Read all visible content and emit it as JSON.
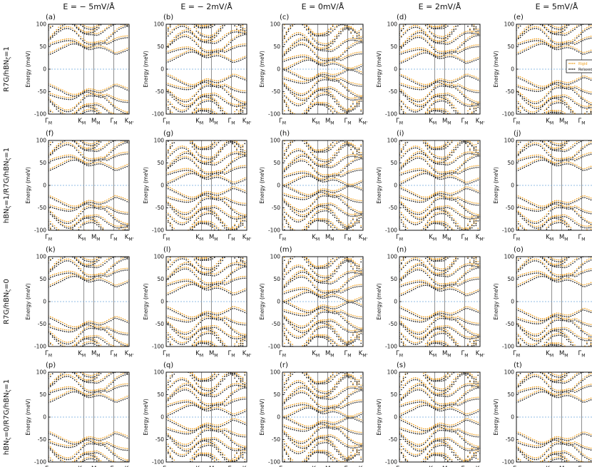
{
  "figure": {
    "column_headers": [
      "E = − 5mV/Å",
      "E = − 2mV/Å",
      "E = 0mV/Å",
      "E = 2mV/Å",
      "E = 5mV/Å"
    ],
    "row_headers": [
      {
        "base": "R7G/hBN",
        "sub": "ζ",
        "tail": "=1"
      },
      {
        "base": "hBN",
        "sub": "ζ",
        "tail": "=1/R7G/hBN",
        "sub2": "ζ",
        "tail2": "=1"
      },
      {
        "base": "R7G/hBN",
        "sub": "ζ",
        "tail": "=0"
      },
      {
        "base": "hBN",
        "sub": "ζ",
        "tail": "=0/R7G/hBN",
        "sub2": "ζ",
        "tail2": "=1"
      }
    ],
    "colors": {
      "rigid": "#f0a020",
      "relaxed": "#1a1a1a",
      "zero_line": "#6fa8dc",
      "kpoint_line": "#444444"
    }
  },
  "chart_data": {
    "type": "scatter",
    "layout": "4x5 grid of band-structure panels",
    "panel_labels": [
      "(a)",
      "(b)",
      "(c)",
      "(d)",
      "(e)",
      "(f)",
      "(g)",
      "(h)",
      "(i)",
      "(j)",
      "(k)",
      "(l)",
      "(m)",
      "(n)",
      "(o)",
      "(p)",
      "(q)",
      "(r)",
      "(s)",
      "(t)"
    ],
    "ylabel": "Energy (meV)",
    "ylim": [
      -100,
      100
    ],
    "yticks": [
      "100",
      "50",
      "0",
      "-50",
      "-100"
    ],
    "xticks": [
      {
        "base": "Γ",
        "sub": "M"
      },
      {
        "base": "K",
        "sub": "M"
      },
      {
        "base": "M",
        "sub": "M"
      },
      {
        "base": "Γ",
        "sub": "M"
      },
      {
        "base": "K",
        "sub": "M'"
      }
    ],
    "legend": {
      "location": "inside panel (e)",
      "entries": [
        "Rigid",
        "Relaxed"
      ]
    },
    "series": [
      {
        "name": "Rigid",
        "color": "#f0a020"
      },
      {
        "name": "Relaxed",
        "color": "#1a1a1a"
      }
    ],
    "panels": [
      {
        "gap": [
          40,
          -40
        ]
      },
      {
        "gap": [
          22,
          -18
        ]
      },
      {
        "gap": [
          4,
          -4
        ]
      },
      {
        "gap": [
          20,
          -18
        ]
      },
      {
        "gap": [
          40,
          -22
        ]
      },
      {
        "gap": [
          40,
          -30
        ]
      },
      {
        "gap": [
          10,
          -10
        ]
      },
      {
        "gap": [
          4,
          -4
        ]
      },
      {
        "gap": [
          10,
          -10
        ]
      },
      {
        "gap": [
          40,
          -30
        ]
      },
      {
        "gap": [
          40,
          -40
        ]
      },
      {
        "gap": [
          22,
          -18
        ]
      },
      {
        "gap": [
          4,
          -4
        ]
      },
      {
        "gap": [
          20,
          -18
        ]
      },
      {
        "gap": [
          40,
          -22
        ]
      },
      {
        "gap": [
          40,
          -40
        ]
      },
      {
        "gap": [
          10,
          -10
        ]
      },
      {
        "gap": [
          4,
          -4
        ]
      },
      {
        "gap": [
          10,
          -10
        ]
      },
      {
        "gap": [
          40,
          -40
        ]
      }
    ]
  }
}
